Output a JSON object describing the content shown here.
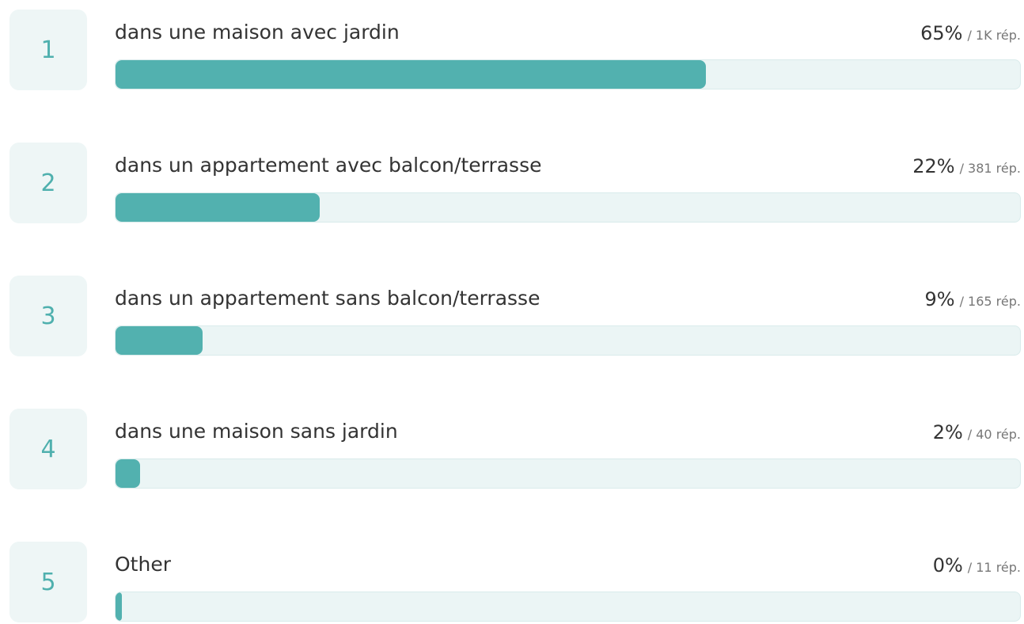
{
  "chart_data": {
    "type": "bar",
    "ranks": [
      "1",
      "2",
      "3",
      "4",
      "5"
    ],
    "categories": [
      "dans une maison avec jardin",
      "dans un appartement avec balcon/terrasse",
      "dans un appartement sans balcon/terrasse",
      "dans une maison sans jardin",
      "Other"
    ],
    "values": [
      65,
      22,
      9,
      2,
      0
    ],
    "value_labels": [
      "65%",
      "22%",
      "9%",
      "2%",
      "0%"
    ],
    "count_labels": [
      "/ 1K rép.",
      "/ 381 rép.",
      "/ 165 rép.",
      "/ 40 rép.",
      "/ 11 rép."
    ],
    "color": "#52b1af",
    "xlim": [
      0,
      100
    ]
  }
}
